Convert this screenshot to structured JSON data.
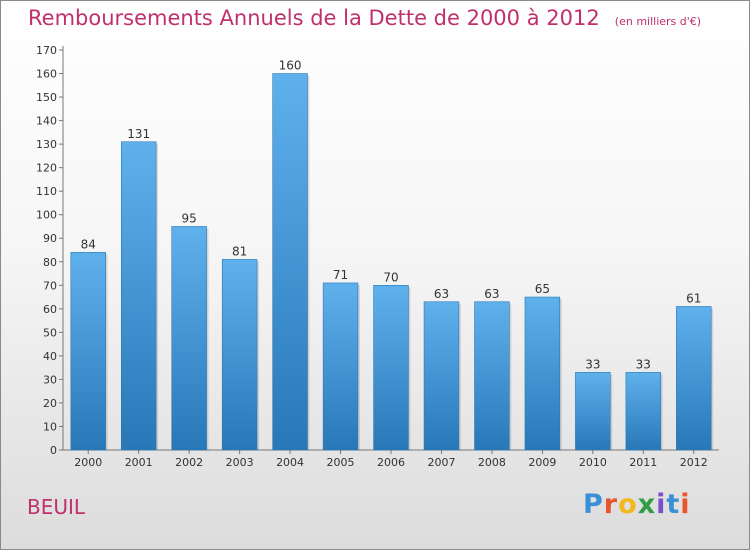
{
  "title": "Remboursements Annuels de la Dette de 2000 à 2012",
  "unit_note": "(en milliers d'€)",
  "commune": "BEUIL",
  "logo": "Proxiti",
  "colors": {
    "accent": "#c0306b",
    "bar_top": "#5fb1ec",
    "bar_bottom": "#2878b8"
  },
  "chart_data": {
    "type": "bar",
    "title": "Remboursements Annuels de la Dette de 2000 à 2012",
    "subtitle": "(en milliers d'€)",
    "categories": [
      "2000",
      "2001",
      "2002",
      "2003",
      "2004",
      "2005",
      "2006",
      "2007",
      "2008",
      "2009",
      "2010",
      "2011",
      "2012"
    ],
    "values": [
      84,
      131,
      95,
      81,
      160,
      71,
      70,
      63,
      63,
      65,
      33,
      33,
      61
    ],
    "ylim": [
      0,
      170
    ],
    "yticks": [
      0,
      10,
      20,
      30,
      40,
      50,
      60,
      70,
      80,
      90,
      100,
      110,
      120,
      130,
      140,
      150,
      160,
      170
    ],
    "grid": false,
    "legend": "none"
  }
}
